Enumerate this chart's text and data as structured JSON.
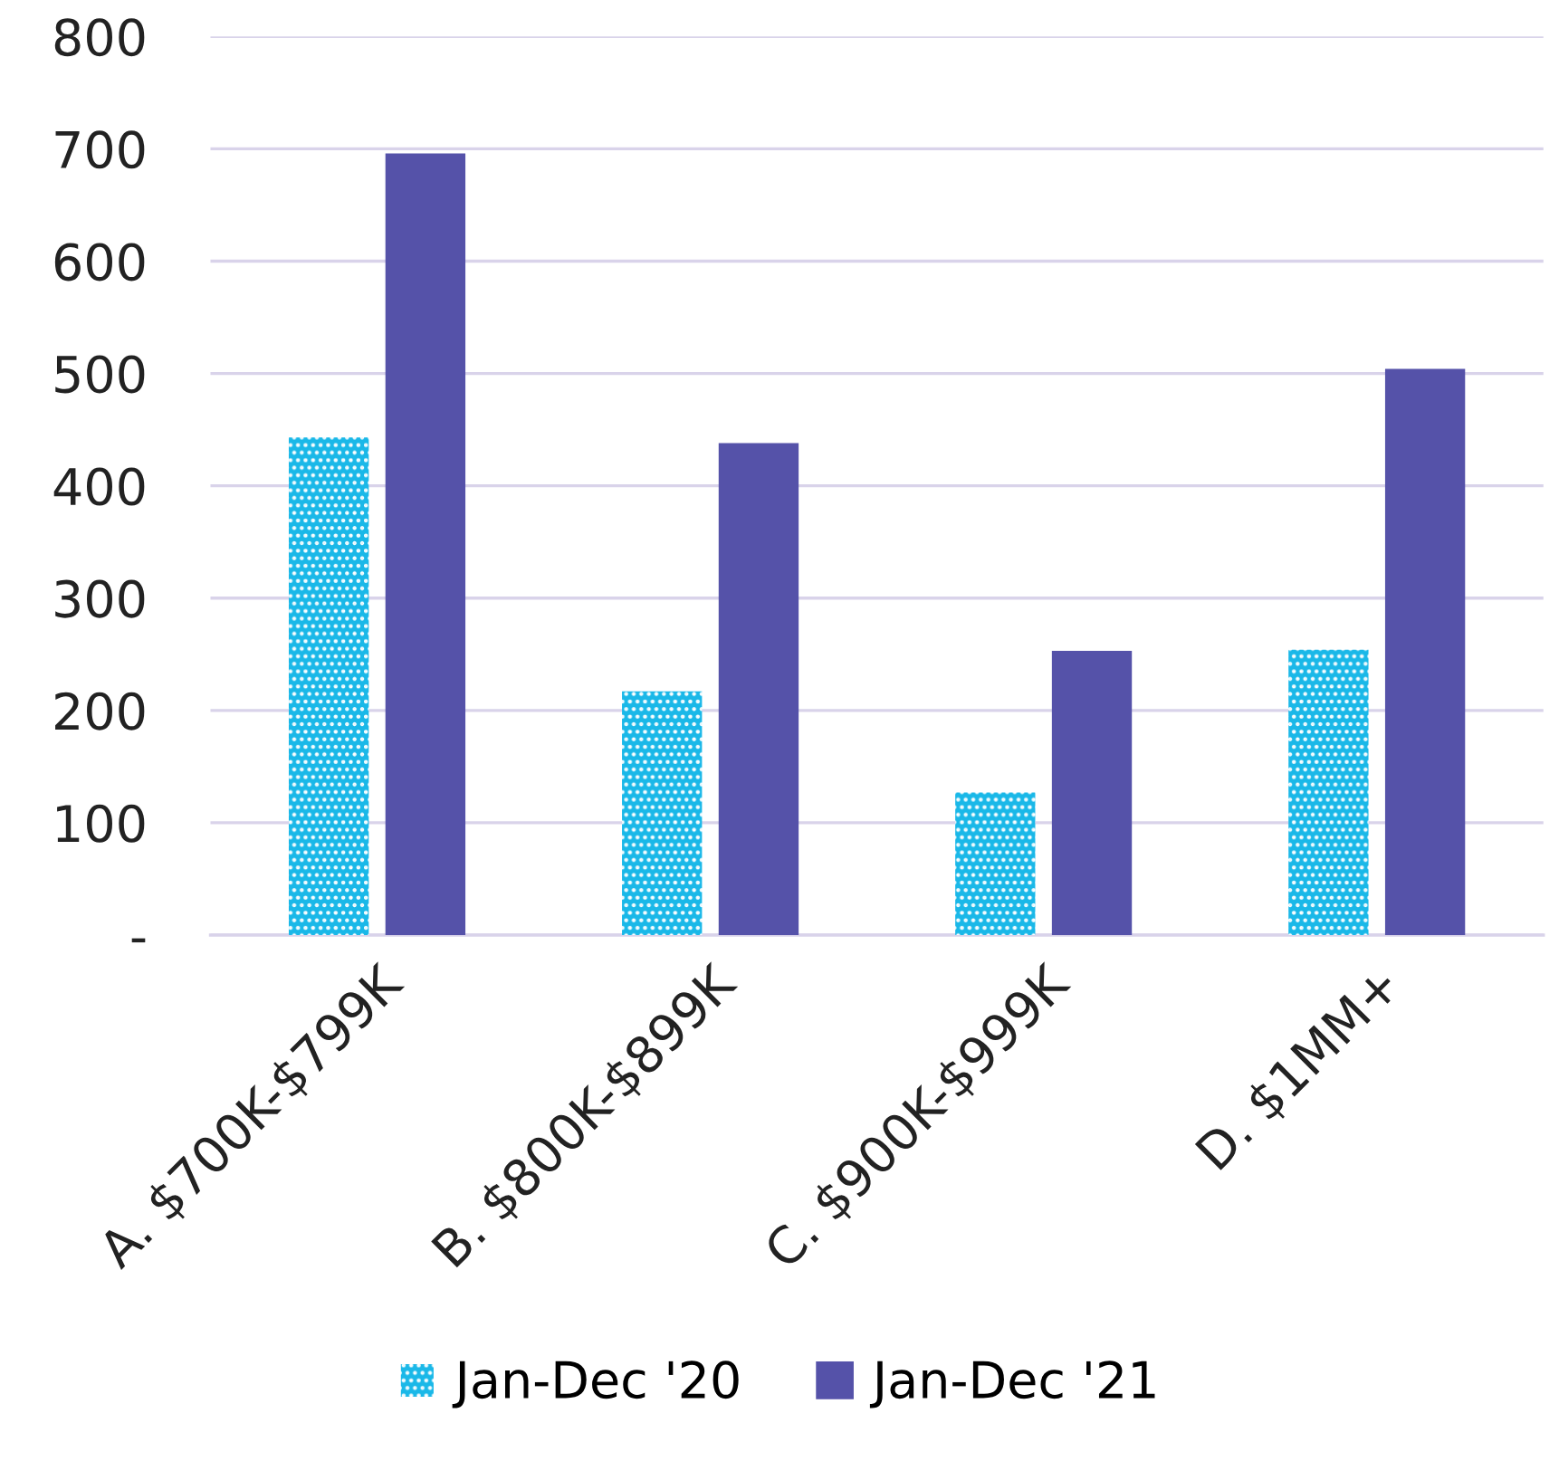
{
  "chart_data": {
    "type": "bar",
    "categories": [
      "A. $700K-$799K",
      "B. $800K-$899K",
      "C. $900K-$999K",
      "D. $1MM+"
    ],
    "series": [
      {
        "name": "Jan-Dec '20",
        "color": "#1ab8e8",
        "values": [
          443,
          217,
          127,
          254
        ]
      },
      {
        "name": "Jan-Dec '21",
        "color": "#5552a9",
        "values": [
          696,
          438,
          253,
          504
        ]
      }
    ],
    "ylim": [
      0,
      800
    ],
    "yticks": [
      {
        "value": 0,
        "label": "-"
      },
      100,
      200,
      300,
      400,
      500,
      600,
      700,
      800
    ],
    "grid": "y",
    "legend": "bottom"
  }
}
